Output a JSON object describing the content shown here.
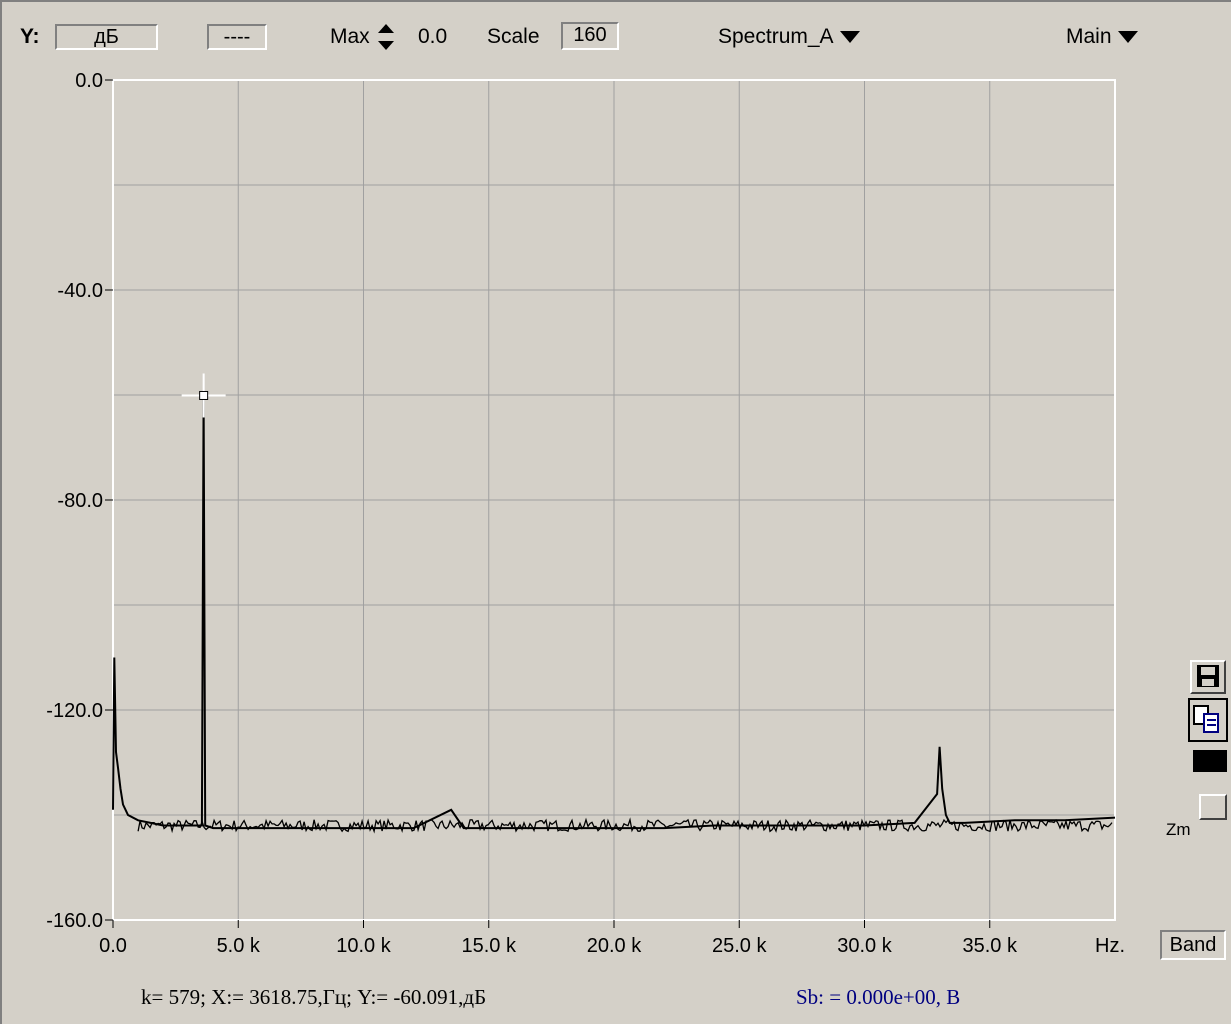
{
  "toolbar": {
    "y_label": "Y:",
    "unit_value": "дБ",
    "dashes_value": "----",
    "max_label": "Max",
    "max_value": "0.0",
    "scale_label": "Scale",
    "scale_value": "160",
    "channel_menu": "Spectrum_A",
    "mode_menu": "Main"
  },
  "side": {
    "zm_label": "Zm",
    "band_label": "Band"
  },
  "status": {
    "cursor_readout": "k= 579; X:= 3618.75,Гц; Y:= -60.091,дБ",
    "sb_readout": "Sb: = 0.000e+00, В"
  },
  "colors": {
    "background": "#d4d0c8",
    "plot_bg": "#d4d0c8",
    "grid": "#a0a0a0",
    "trace": "#000000",
    "axis": "#ffffff",
    "sb_text": "#000080"
  },
  "chart_data": {
    "type": "line",
    "title": "",
    "xlabel": "Hz.",
    "ylabel": "",
    "xlim": [
      0,
      40000
    ],
    "ylim": [
      -160,
      0
    ],
    "x_ticks": [
      0,
      5000,
      10000,
      15000,
      20000,
      25000,
      30000,
      35000
    ],
    "x_tick_labels": [
      "0.0",
      "5.0 k",
      "10.0 k",
      "15.0 k",
      "20.0 k",
      "25.0 k",
      "30.0 k",
      "35.0 k"
    ],
    "y_ticks": [
      0,
      -40,
      -80,
      -120,
      -160
    ],
    "y_tick_labels": [
      "0.0",
      "-40.0",
      "-80.0",
      "-120.0",
      "-160.0"
    ],
    "grid": true,
    "noise_floor_db": -142,
    "series": [
      {
        "values_description": "noise floor with peaks",
        "x": [
          0,
          50,
          120,
          200,
          300,
          400,
          600,
          1000,
          1500,
          2000,
          3000,
          3550,
          3618.75,
          3680,
          4000,
          6000,
          8000,
          10000,
          12000,
          13500,
          14000,
          16000,
          18000,
          20000,
          22000,
          24000,
          26000,
          28000,
          30000,
          32000,
          32900,
          33000,
          33100,
          33250,
          33400,
          34000,
          36000,
          38000,
          40000
        ],
        "y": [
          -139,
          -110,
          -128,
          -131,
          -135,
          -138,
          -140,
          -141,
          -141.5,
          -142,
          -142,
          -142,
          -60.091,
          -142,
          -142.5,
          -142.5,
          -142.5,
          -142.5,
          -142.5,
          -139,
          -142.5,
          -142.5,
          -142.5,
          -142.5,
          -142.5,
          -142,
          -142,
          -142,
          -142,
          -141.5,
          -136,
          -127,
          -135,
          -140,
          -141.5,
          -141.5,
          -141,
          -141,
          -140.5
        ]
      }
    ],
    "cursor": {
      "x": 3618.75,
      "y": -60.091
    }
  }
}
